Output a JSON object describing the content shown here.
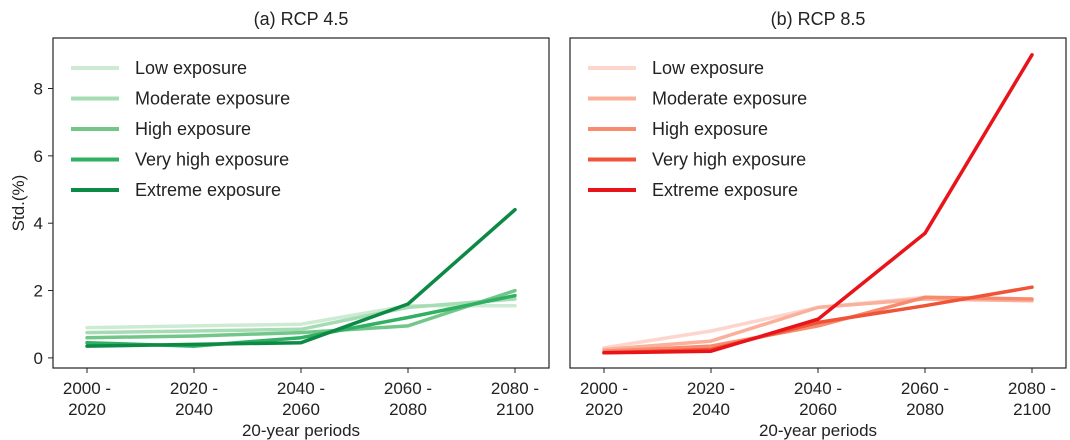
{
  "chart_data": [
    {
      "type": "line",
      "title": "(a) RCP 4.5",
      "xlabel": "20-year periods",
      "ylabel": "Std.(%)",
      "categories": [
        "2000 -\n2020",
        "2020 -\n2040",
        "2040 -\n2060",
        "2060 -\n2080",
        "2080 -\n2100"
      ],
      "ylim": [
        -0.3,
        9.5
      ],
      "yticks": [
        0,
        2,
        4,
        6,
        8
      ],
      "legend_position": "top-left",
      "series": [
        {
          "name": "Low exposure",
          "color": "#cdebd3",
          "values": [
            0.9,
            0.95,
            1.0,
            1.55,
            1.55
          ]
        },
        {
          "name": "Moderate exposure",
          "color": "#a6dcb3",
          "values": [
            0.75,
            0.8,
            0.85,
            1.5,
            1.75
          ]
        },
        {
          "name": "High exposure",
          "color": "#72c689",
          "values": [
            0.6,
            0.65,
            0.75,
            0.95,
            2.0
          ]
        },
        {
          "name": "Very high exposure",
          "color": "#2fb063",
          "values": [
            0.45,
            0.35,
            0.6,
            1.2,
            1.85
          ]
        },
        {
          "name": "Extreme exposure",
          "color": "#0c8a45",
          "values": [
            0.35,
            0.4,
            0.45,
            1.6,
            4.4
          ]
        }
      ]
    },
    {
      "type": "line",
      "title": "(b) RCP 8.5",
      "xlabel": "20-year periods",
      "ylabel": "",
      "categories": [
        "2000 -\n2020",
        "2020 -\n2040",
        "2040 -\n2060",
        "2060 -\n2080",
        "2080 -\n2100"
      ],
      "ylim": [
        -0.3,
        9.5
      ],
      "yticks": [],
      "legend_position": "top-left",
      "series": [
        {
          "name": "Low exposure",
          "color": "#fdd5cc",
          "values": [
            0.3,
            0.8,
            1.5,
            1.8,
            1.7
          ]
        },
        {
          "name": "Moderate exposure",
          "color": "#fbb09c",
          "values": [
            0.25,
            0.5,
            1.5,
            1.75,
            1.7
          ]
        },
        {
          "name": "High exposure",
          "color": "#f88a6d",
          "values": [
            0.2,
            0.35,
            0.95,
            1.8,
            1.75
          ]
        },
        {
          "name": "Very high exposure",
          "color": "#f05438",
          "values": [
            0.15,
            0.25,
            1.05,
            1.55,
            2.1
          ]
        },
        {
          "name": "Extreme exposure",
          "color": "#e8141a",
          "values": [
            0.15,
            0.2,
            1.15,
            3.7,
            9.0
          ]
        }
      ]
    }
  ]
}
